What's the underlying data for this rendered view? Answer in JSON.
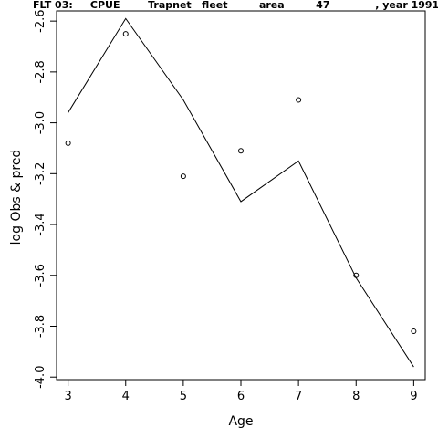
{
  "chart_data": {
    "type": "line",
    "title": "FLT 03:     CPUE        Trapnet   fleet         area         47             , year 1991",
    "xlabel": "Age",
    "ylabel": "log Obs & pred",
    "xlim": [
      2.8,
      9.2
    ],
    "ylim": [
      -4.01,
      -2.56
    ],
    "x_ticks": [
      3,
      4,
      5,
      6,
      7,
      8,
      9
    ],
    "y_ticks": [
      -4.0,
      -3.8,
      -3.6,
      -3.4,
      -3.2,
      -3.0,
      -2.8,
      -2.6
    ],
    "grid": false,
    "series": [
      {
        "style": "line",
        "x": [
          3,
          4,
          5,
          6,
          7,
          8,
          9
        ],
        "y": [
          -2.96,
          -2.59,
          -2.91,
          -3.31,
          -3.15,
          -3.61,
          -3.96
        ]
      },
      {
        "style": "points",
        "x": [
          3,
          4,
          5,
          6,
          7,
          8,
          9
        ],
        "y": [
          -3.08,
          -2.65,
          -3.21,
          -3.11,
          -2.91,
          -3.6,
          -3.82
        ]
      }
    ]
  }
}
